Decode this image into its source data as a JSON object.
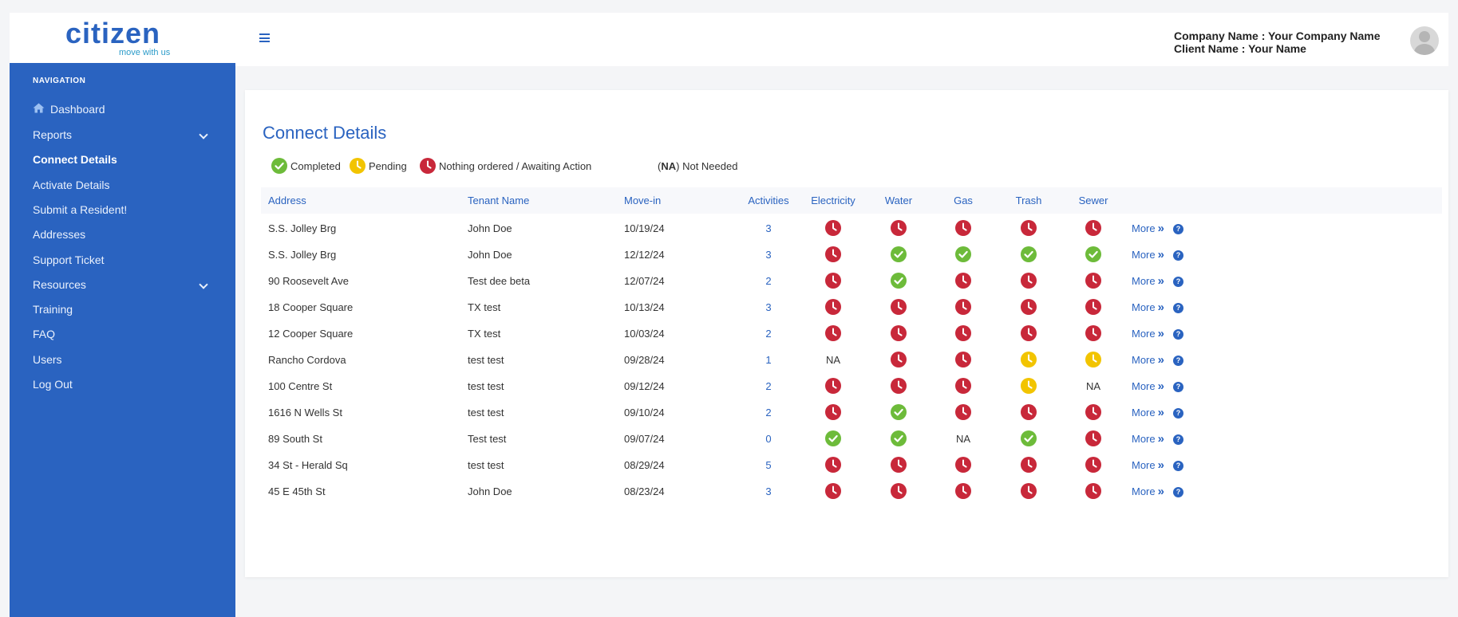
{
  "brand": {
    "name": "citizen",
    "tagline": "move with us",
    "accent": "#2a63c0"
  },
  "sidebar": {
    "heading": "NAVIGATION",
    "items": [
      {
        "label": "Dashboard",
        "icon": "home-icon"
      },
      {
        "label": "Reports",
        "expandable": true
      },
      {
        "label": "Connect Details",
        "active": true
      },
      {
        "label": "Activate Details"
      },
      {
        "label": "Submit a Resident!"
      },
      {
        "label": "Addresses"
      },
      {
        "label": "Support Ticket"
      },
      {
        "label": "Resources",
        "expandable": true
      },
      {
        "label": "Training"
      },
      {
        "label": "FAQ"
      },
      {
        "label": "Users"
      },
      {
        "label": "Log Out"
      }
    ]
  },
  "header": {
    "company_line": "Company Name : Your Company Name",
    "client_line": "Client Name : Your Name"
  },
  "page": {
    "title": "Connect Details",
    "legend": {
      "completed": "Completed",
      "pending": "Pending",
      "nothing": "Nothing ordered / Awaiting Action",
      "na_abbr": "NA",
      "na_text": "Not Needed"
    },
    "status_colors": {
      "completed": "#6dbb3a",
      "pending": "#f2c400",
      "nothing": "#c8283a"
    }
  },
  "table": {
    "columns": {
      "address": "Address",
      "tenant": "Tenant Name",
      "movein": "Move-in",
      "activities": "Activities",
      "electricity": "Electricity",
      "water": "Water",
      "gas": "Gas",
      "trash": "Trash",
      "sewer": "Sewer"
    },
    "more_label": "More",
    "rows": [
      {
        "address": "S.S. Jolley Brg",
        "tenant": "John Doe",
        "movein": "10/19/24",
        "activities": "3",
        "electricity": "nothing",
        "water": "nothing",
        "gas": "nothing",
        "trash": "nothing",
        "sewer": "nothing"
      },
      {
        "address": "S.S. Jolley Brg",
        "tenant": "John Doe",
        "movein": "12/12/24",
        "activities": "3",
        "electricity": "nothing",
        "water": "completed",
        "gas": "completed",
        "trash": "completed",
        "sewer": "completed"
      },
      {
        "address": "90 Roosevelt Ave",
        "tenant": "Test dee beta",
        "movein": "12/07/24",
        "activities": "2",
        "electricity": "nothing",
        "water": "completed",
        "gas": "nothing",
        "trash": "nothing",
        "sewer": "nothing"
      },
      {
        "address": "18 Cooper Square",
        "tenant": "TX test",
        "movein": "10/13/24",
        "activities": "3",
        "electricity": "nothing",
        "water": "nothing",
        "gas": "nothing",
        "trash": "nothing",
        "sewer": "nothing"
      },
      {
        "address": "12 Cooper Square",
        "tenant": "TX test",
        "movein": "10/03/24",
        "activities": "2",
        "electricity": "nothing",
        "water": "nothing",
        "gas": "nothing",
        "trash": "nothing",
        "sewer": "nothing"
      },
      {
        "address": "Rancho Cordova",
        "tenant": "test test",
        "movein": "09/28/24",
        "activities": "1",
        "electricity": "NA",
        "water": "nothing",
        "gas": "nothing",
        "trash": "pending",
        "sewer": "pending"
      },
      {
        "address": "100 Centre St",
        "tenant": "test test",
        "movein": "09/12/24",
        "activities": "2",
        "electricity": "nothing",
        "water": "nothing",
        "gas": "nothing",
        "trash": "pending",
        "sewer": "NA"
      },
      {
        "address": "1616 N Wells St",
        "tenant": "test test",
        "movein": "09/10/24",
        "activities": "2",
        "electricity": "nothing",
        "water": "completed",
        "gas": "nothing",
        "trash": "nothing",
        "sewer": "nothing"
      },
      {
        "address": "89 South St",
        "tenant": "Test test",
        "movein": "09/07/24",
        "activities": "0",
        "electricity": "completed",
        "water": "completed",
        "gas": "NA",
        "trash": "completed",
        "sewer": "nothing"
      },
      {
        "address": "34 St - Herald Sq",
        "tenant": "test test",
        "movein": "08/29/24",
        "activities": "5",
        "electricity": "nothing",
        "water": "nothing",
        "gas": "nothing",
        "trash": "nothing",
        "sewer": "nothing"
      },
      {
        "address": "45 E 45th St",
        "tenant": "John Doe",
        "movein": "08/23/24",
        "activities": "3",
        "electricity": "nothing",
        "water": "nothing",
        "gas": "nothing",
        "trash": "nothing",
        "sewer": "nothing"
      }
    ]
  }
}
